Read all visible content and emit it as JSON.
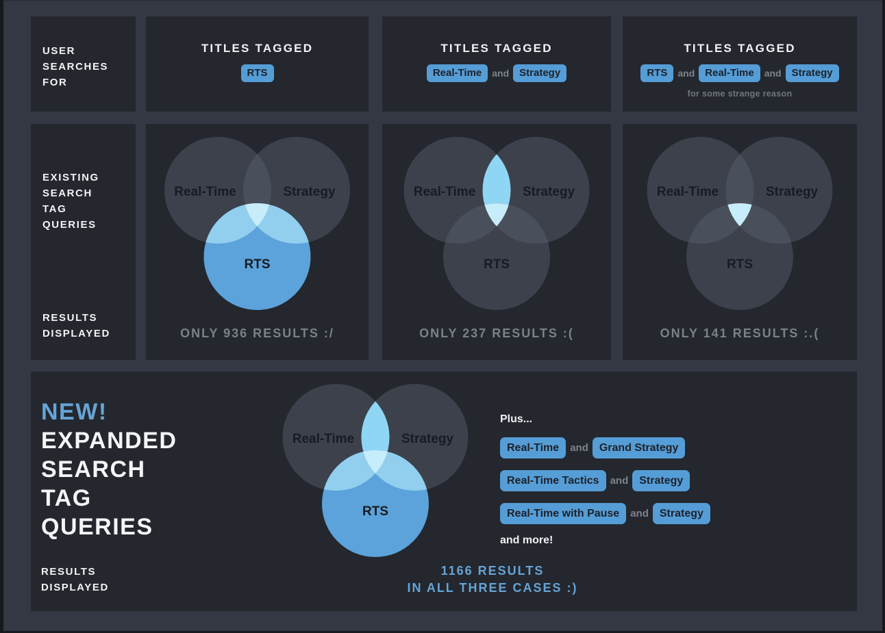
{
  "colors": {
    "page_bg": "#343842",
    "panel_bg": "#24272e",
    "edge": "#17191e",
    "accent_blue": "#66a4d6",
    "pill_bg": "#559dd6",
    "pill_text": "#1d212a",
    "and_text": "#7d828c",
    "muted_text": "#70757f",
    "result_text": "#7b8089",
    "white_text": "#f2f3f5",
    "venn": {
      "gray_circle": "#3c414c",
      "gray_lens": "#4a505b",
      "blue_circle": "#5ba3da",
      "blue_overlap": "#92cfee",
      "lens_highlight": "#8fd6f4",
      "triple_highlight": "#c8edfa",
      "label": "#171b22"
    }
  },
  "top_row": {
    "user_searches_label": [
      "USER",
      "SEARCHES",
      "FOR"
    ],
    "panels": [
      {
        "title": "TITLES TAGGED",
        "query": [
          {
            "t": "tag",
            "text": "RTS"
          }
        ]
      },
      {
        "title": "TITLES TAGGED",
        "query": [
          {
            "t": "tag",
            "text": "Real-Time"
          },
          {
            "t": "and",
            "text": "and"
          },
          {
            "t": "tag",
            "text": "Strategy"
          }
        ]
      },
      {
        "title": "TITLES TAGGED",
        "query": [
          {
            "t": "tag",
            "text": "RTS"
          },
          {
            "t": "and",
            "text": "and"
          },
          {
            "t": "tag",
            "text": "Real-Time"
          },
          {
            "t": "and",
            "text": "and"
          },
          {
            "t": "tag",
            "text": "Strategy"
          }
        ],
        "note": "for some strange reason"
      }
    ]
  },
  "existing_row": {
    "label_top": [
      "EXISTING",
      "SEARCH",
      "TAG",
      "QUERIES"
    ],
    "label_bottom": [
      "RESULTS",
      "DISPLAYED"
    ],
    "venns": [
      {
        "circles": {
          "left": "Real-Time",
          "right": "Strategy",
          "bottom": "RTS"
        },
        "highlight": [
          "rts-circle"
        ],
        "result": "ONLY 936 RESULTS :/"
      },
      {
        "circles": {
          "left": "Real-Time",
          "right": "Strategy",
          "bottom": "RTS"
        },
        "highlight": [
          "left-right-overlap"
        ],
        "result": "ONLY 237 RESULTS :("
      },
      {
        "circles": {
          "left": "Real-Time",
          "right": "Strategy",
          "bottom": "RTS"
        },
        "highlight": [
          "center-overlap"
        ],
        "result": "ONLY 141 RESULTS :.("
      }
    ]
  },
  "new_section": {
    "badge": "NEW!",
    "title_lines": [
      "EXPANDED",
      "SEARCH",
      "TAG",
      "QUERIES"
    ],
    "label_bottom": [
      "RESULTS",
      "DISPLAYED"
    ],
    "venn": {
      "circles": {
        "left": "Real-Time",
        "right": "Strategy",
        "bottom": "RTS"
      },
      "highlight": [
        "rts-circle",
        "left-right-overlap",
        "center-overlap"
      ]
    },
    "plus_intro": "Plus...",
    "plus_rows": [
      [
        {
          "t": "tag",
          "text": "Real-Time"
        },
        {
          "t": "and",
          "text": "and"
        },
        {
          "t": "tag",
          "text": "Grand Strategy"
        }
      ],
      [
        {
          "t": "tag",
          "text": "Real-Time Tactics"
        },
        {
          "t": "and",
          "text": "and"
        },
        {
          "t": "tag",
          "text": "Strategy"
        }
      ],
      [
        {
          "t": "tag",
          "text": "Real-Time with Pause"
        },
        {
          "t": "and",
          "text": "and"
        },
        {
          "t": "tag",
          "text": "Strategy"
        }
      ]
    ],
    "plus_outro": "and more!",
    "result_lines": [
      "1166 RESULTS",
      "IN ALL THREE CASES :)"
    ]
  }
}
